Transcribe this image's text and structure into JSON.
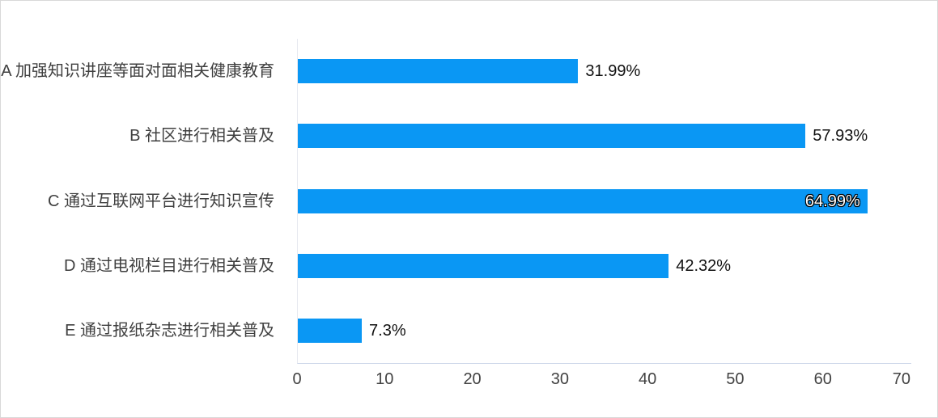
{
  "chart_data": {
    "type": "bar",
    "orientation": "horizontal",
    "title": "",
    "categories": [
      "A 加强知识讲座等面对面相关健康教育",
      "B 社区进行相关普及",
      "C 通过互联网平台进行知识宣传",
      "D 通过电视栏目进行相关普及",
      "E 通过报纸杂志进行相关普及"
    ],
    "values": [
      31.99,
      57.93,
      64.99,
      42.32,
      7.3
    ],
    "value_labels": [
      "31.99%",
      "57.93%",
      "64.99%",
      "42.32%",
      "7.3%"
    ],
    "value_label_placement": [
      "outside",
      "outside",
      "inside",
      "outside",
      "outside"
    ],
    "x_ticks": [
      "0",
      "10",
      "20",
      "30",
      "40",
      "50",
      "60",
      "70"
    ],
    "xlim": [
      0,
      70
    ],
    "grid": false,
    "legend": false,
    "colors": {
      "bar": "#0a97f4",
      "value_label_outside": "#111111",
      "value_label_inside": "#ffffff",
      "category_text": "#3f3f3f",
      "tick_text": "#424242",
      "axis_line_left": "#e7e9f0",
      "axis_line_bottom": "#ccd6e9",
      "card_border": "#d9d9d9",
      "background": "#ffffff"
    }
  }
}
